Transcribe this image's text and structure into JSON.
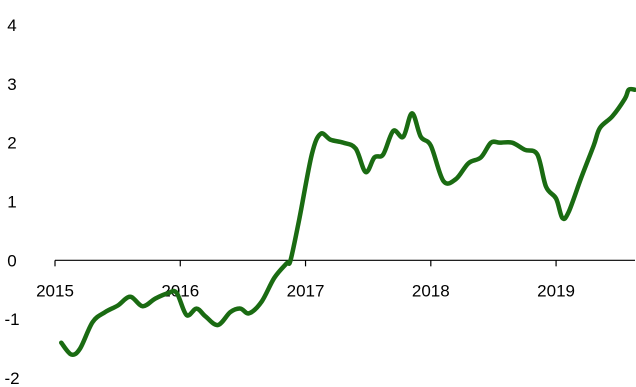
{
  "chart_data": {
    "type": "line",
    "title": "",
    "xlabel": "",
    "ylabel": "",
    "xlim": [
      2015.0,
      2019.63
    ],
    "ylim": [
      -2,
      4
    ],
    "grid": false,
    "legend": "none",
    "x_ticks": [
      2015,
      2016,
      2017,
      2018,
      2019
    ],
    "x_tick_labels": [
      "2015",
      "2016",
      "2017",
      "2018",
      "2019"
    ],
    "y_ticks": [
      -2,
      -1,
      0,
      1,
      2,
      3,
      4
    ],
    "y_tick_labels": [
      "-2",
      "-1",
      "0",
      "1",
      "2",
      "3",
      "4"
    ],
    "series": [
      {
        "color": "#1a6b12",
        "points": [
          [
            2015.05,
            -1.4
          ],
          [
            2015.13,
            -1.6
          ],
          [
            2015.2,
            -1.5
          ],
          [
            2015.3,
            -1.05
          ],
          [
            2015.4,
            -0.88
          ],
          [
            2015.5,
            -0.77
          ],
          [
            2015.6,
            -0.62
          ],
          [
            2015.7,
            -0.78
          ],
          [
            2015.8,
            -0.65
          ],
          [
            2015.9,
            -0.56
          ],
          [
            2015.97,
            -0.55
          ],
          [
            2016.05,
            -0.93
          ],
          [
            2016.13,
            -0.82
          ],
          [
            2016.2,
            -0.95
          ],
          [
            2016.3,
            -1.1
          ],
          [
            2016.4,
            -0.88
          ],
          [
            2016.48,
            -0.82
          ],
          [
            2016.55,
            -0.9
          ],
          [
            2016.65,
            -0.7
          ],
          [
            2016.75,
            -0.3
          ],
          [
            2016.85,
            -0.05
          ],
          [
            2016.88,
            0.0
          ],
          [
            2016.95,
            0.7
          ],
          [
            2017.05,
            1.8
          ],
          [
            2017.12,
            2.15
          ],
          [
            2017.2,
            2.05
          ],
          [
            2017.3,
            2.0
          ],
          [
            2017.4,
            1.9
          ],
          [
            2017.48,
            1.5
          ],
          [
            2017.55,
            1.75
          ],
          [
            2017.62,
            1.8
          ],
          [
            2017.7,
            2.2
          ],
          [
            2017.78,
            2.1
          ],
          [
            2017.85,
            2.5
          ],
          [
            2017.92,
            2.1
          ],
          [
            2018.0,
            1.95
          ],
          [
            2018.1,
            1.35
          ],
          [
            2018.2,
            1.38
          ],
          [
            2018.3,
            1.65
          ],
          [
            2018.4,
            1.75
          ],
          [
            2018.48,
            2.0
          ],
          [
            2018.55,
            2.0
          ],
          [
            2018.65,
            2.0
          ],
          [
            2018.75,
            1.88
          ],
          [
            2018.85,
            1.8
          ],
          [
            2018.92,
            1.25
          ],
          [
            2019.0,
            1.05
          ],
          [
            2019.05,
            0.72
          ],
          [
            2019.1,
            0.82
          ],
          [
            2019.2,
            1.4
          ],
          [
            2019.3,
            1.95
          ],
          [
            2019.35,
            2.25
          ],
          [
            2019.45,
            2.45
          ],
          [
            2019.55,
            2.75
          ],
          [
            2019.58,
            2.9
          ],
          [
            2019.63,
            2.9
          ]
        ]
      }
    ]
  }
}
